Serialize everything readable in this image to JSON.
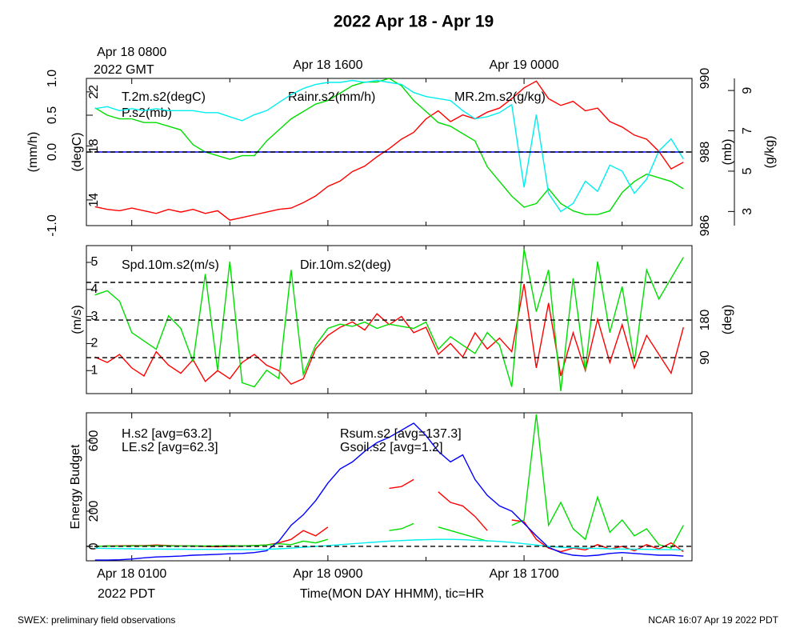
{
  "chart_data": {
    "type": "line",
    "title": "2022 Apr 18 - Apr 19",
    "xlabel": "Time(MON DAY HHMM), tic=HR",
    "x_sub_label": "2022 PDT",
    "x2_sub_label": "2022 GMT",
    "xlim": [
      -0.85,
      23.85
    ],
    "xticks": [
      {
        "value": 1,
        "label": "Apr 18 0100"
      },
      {
        "value": 9,
        "label": "Apr 18 0900"
      },
      {
        "value": 17,
        "label": "Apr 18 1700"
      }
    ],
    "x2ticks": [
      {
        "value": 1,
        "label": "Apr 18 0800"
      },
      {
        "value": 9,
        "label": "Apr 18 1600"
      },
      {
        "value": 17,
        "label": "Apr 19 0000"
      }
    ],
    "xminorticks": [
      5,
      13,
      21
    ],
    "x": [
      -0.5,
      0,
      0.5,
      1,
      1.5,
      2,
      2.5,
      3,
      3.5,
      4,
      4.5,
      5,
      5.5,
      6,
      6.5,
      7,
      7.5,
      8,
      8.5,
      9,
      9.5,
      10,
      10.5,
      11,
      11.5,
      12,
      12.5,
      13,
      13.5,
      14,
      14.5,
      15,
      15.5,
      16,
      16.5,
      17,
      17.5,
      18,
      18.5,
      19,
      19.5,
      20,
      20.5,
      21,
      21.5,
      22,
      22.5,
      23,
      23.5
    ],
    "panels": [
      {
        "axes": [
          {
            "label": "(mm/h)",
            "ylim": [
              -1,
              1
            ],
            "yticks": [
              {
                "value": -1,
                "label": "-1.0"
              },
              {
                "value": 0,
                "label": "0.0"
              },
              0.5,
              {
                "value": 1,
                "label": "1.0"
              }
            ],
            "grid_lines": [
              0
            ]
          },
          {
            "label": "(degC)",
            "ylim": [
              12.1,
              23.0
            ],
            "yticks": [
              14,
              18,
              22
            ]
          },
          {
            "label": "(mb)",
            "ylim": [
              986,
              990
            ],
            "yticks": [
              986,
              988,
              990
            ]
          },
          {
            "label": "(g/kg)",
            "ylim": [
              2.3,
              9.6
            ],
            "yticks": [
              3,
              5,
              7,
              9
            ]
          }
        ],
        "series": [
          {
            "name": "T.2m.s2(degC)",
            "color": "#ff0000",
            "axis": 1,
            "values": [
              13.5,
              13.3,
              13.2,
              13.4,
              13.2,
              13.0,
              13.3,
              13.1,
              13.3,
              13.0,
              13.2,
              12.5,
              12.7,
              12.9,
              13.1,
              13.3,
              13.4,
              13.8,
              14.3,
              15.0,
              15.4,
              16.1,
              16.5,
              17.2,
              17.8,
              18.5,
              19.0,
              20.0,
              20.6,
              19.8,
              20.3,
              20.0,
              20.5,
              20.8,
              21.5,
              22.3,
              22.8,
              21.5,
              21.0,
              21.3,
              20.6,
              20.8,
              19.8,
              19.4,
              18.8,
              18.5,
              17.6,
              16.3,
              16.8
            ]
          },
          {
            "name": "P.s2(mb)",
            "color": "#00dd00",
            "axis": 2,
            "values": [
              989.2,
              989.0,
              988.9,
              988.9,
              988.8,
              988.8,
              988.7,
              988.6,
              988.2,
              988.0,
              987.9,
              987.8,
              987.9,
              987.9,
              988.3,
              988.6,
              988.9,
              989.1,
              989.3,
              989.4,
              989.6,
              989.8,
              989.9,
              989.9,
              990.0,
              989.8,
              989.4,
              989.1,
              988.8,
              988.7,
              988.5,
              988.3,
              987.6,
              987.2,
              986.8,
              986.5,
              986.6,
              987.0,
              986.6,
              986.4,
              986.3,
              986.3,
              986.4,
              986.9,
              987.2,
              987.4,
              987.3,
              987.2,
              987.0
            ]
          },
          {
            "name": "Rainr.s2(mm/h)",
            "color": "#0000ff",
            "axis": 0,
            "values": [
              0,
              0,
              0,
              0,
              0,
              0,
              0,
              0,
              0,
              0,
              0,
              0,
              0,
              0,
              0,
              0,
              0,
              0,
              0,
              0,
              0,
              0,
              0,
              0,
              0,
              0,
              0,
              0,
              0,
              0,
              0,
              0,
              0,
              0,
              0,
              0,
              0,
              0,
              0,
              0,
              0,
              0,
              0,
              0,
              0,
              0,
              0,
              0,
              0
            ]
          },
          {
            "name": "MR.2m.s2(g/kg)",
            "color": "#00eeee",
            "axis": 3,
            "values": [
              8.1,
              8.2,
              8.0,
              8.1,
              8.0,
              8.1,
              8.0,
              8.0,
              8.0,
              7.9,
              7.9,
              7.7,
              7.5,
              7.8,
              8.0,
              8.4,
              8.8,
              9.1,
              9.3,
              9.4,
              9.4,
              9.5,
              9.4,
              9.5,
              9.4,
              9.3,
              8.9,
              8.7,
              8.6,
              8.5,
              8.0,
              7.6,
              7.7,
              7.9,
              8.3,
              4.2,
              7.8,
              3.9,
              3.0,
              3.4,
              4.5,
              4.0,
              5.3,
              5.0,
              3.9,
              4.6,
              6.0,
              6.6,
              5.6
            ]
          }
        ]
      },
      {
        "axes": [
          {
            "label": "(m/s)",
            "ylim": [
              0.15,
              5.62
            ],
            "yticks": [
              1,
              2,
              3,
              4,
              5
            ]
          },
          {
            "label": "(deg)",
            "ylim": [
              4,
              358
            ],
            "yticks": [
              90,
              180
            ],
            "grid_lines": [
              90,
              180,
              270
            ]
          }
        ],
        "series": [
          {
            "name": "Spd.10m.s2(m/s)",
            "color": "#ff0000",
            "axis": 0,
            "values": [
              1.5,
              1.3,
              1.6,
              1.1,
              0.8,
              1.7,
              1.2,
              0.9,
              1.4,
              0.6,
              1.0,
              0.7,
              1.3,
              1.6,
              1.2,
              1.0,
              0.5,
              0.7,
              1.8,
              2.3,
              2.6,
              2.8,
              2.5,
              3.1,
              2.7,
              3.0,
              2.4,
              2.6,
              1.6,
              2.0,
              1.5,
              2.4,
              1.8,
              2.2,
              1.7,
              4.2,
              1.1,
              3.5,
              0.8,
              2.4,
              1.0,
              2.9,
              1.3,
              2.7,
              1.1,
              2.3,
              1.6,
              0.9,
              2.6
            ]
          },
          {
            "name": "Dir.10m.s2(deg)",
            "color": "#00dd00",
            "axis": 1,
            "values": [
              240,
              250,
              225,
              150,
              130,
              110,
              190,
              160,
              80,
              290,
              60,
              320,
              30,
              20,
              60,
              40,
              300,
              50,
              120,
              160,
              170,
              165,
              175,
              160,
              170,
              165,
              160,
              175,
              110,
              140,
              120,
              100,
              150,
              120,
              20,
              350,
              200,
              300,
              10,
              280,
              60,
              320,
              150,
              260,
              80,
              300,
              230,
              280,
              330
            ]
          }
        ]
      },
      {
        "axes": [
          {
            "label": "Energy Budget",
            "ylim": [
              -82,
              759
            ],
            "yticks": [
              0,
              200,
              600
            ],
            "grid_lines": [
              0
            ]
          }
        ],
        "series": [
          {
            "name": "H.s2 [avg=63.2]",
            "color": "#ff0000",
            "axis": 0,
            "values": [
              0,
              2,
              3,
              5,
              4,
              8,
              5,
              3,
              2,
              0,
              -2,
              0,
              2,
              5,
              8,
              20,
              40,
              90,
              60,
              110,
              null,
              null,
              null,
              null,
              330,
              340,
              380,
              null,
              310,
              250,
              230,
              170,
              90,
              null,
              150,
              140,
              40,
              -10,
              -30,
              -10,
              -20,
              10,
              -15,
              0,
              -25,
              10,
              -15,
              20,
              -30
            ]
          },
          {
            "name": "LE.s2 [avg=62.3]",
            "color": "#00dd00",
            "axis": 0,
            "values": [
              0,
              2,
              1,
              3,
              2,
              4,
              3,
              2,
              3,
              2,
              3,
              4,
              3,
              5,
              8,
              15,
              10,
              30,
              20,
              40,
              null,
              null,
              null,
              null,
              90,
              100,
              130,
              null,
              110,
              90,
              70,
              50,
              30,
              null,
              120,
              150,
              750,
              120,
              250,
              100,
              40,
              280,
              80,
              150,
              60,
              100,
              10,
              -10,
              120
            ]
          },
          {
            "name": "Rsum.s2 [avg=137.3]",
            "color": "#0000ff",
            "axis": 0,
            "values": [
              -78,
              -78,
              -76,
              -72,
              -65,
              -60,
              -58,
              -55,
              -50,
              -48,
              -45,
              -42,
              -40,
              -35,
              -25,
              30,
              120,
              180,
              260,
              360,
              440,
              480,
              540,
              590,
              620,
              660,
              700,
              630,
              540,
              480,
              520,
              380,
              290,
              230,
              200,
              130,
              60,
              -5,
              -35,
              -50,
              -55,
              -50,
              -40,
              -35,
              -40,
              -45,
              -50,
              -50,
              -55
            ]
          },
          {
            "name": "Gsoil.s2 [avg=1.2]",
            "color": "#00eeee",
            "axis": 0,
            "values": [
              -10,
              -12,
              -13,
              -14,
              -15,
              -15,
              -16,
              -16,
              -17,
              -17,
              -17,
              -18,
              -18,
              -18,
              -17,
              -14,
              -10,
              -5,
              0,
              5,
              10,
              15,
              20,
              25,
              30,
              33,
              36,
              38,
              40,
              40,
              38,
              35,
              32,
              28,
              22,
              15,
              8,
              0,
              -5,
              -8,
              -10,
              -12,
              -14,
              -15,
              -16,
              -17,
              -18,
              -19,
              -20
            ]
          }
        ]
      }
    ]
  },
  "footer": {
    "left": "SWEX: preliminary field observations",
    "right": "NCAR 16:07 Apr 19 2022 PDT"
  }
}
